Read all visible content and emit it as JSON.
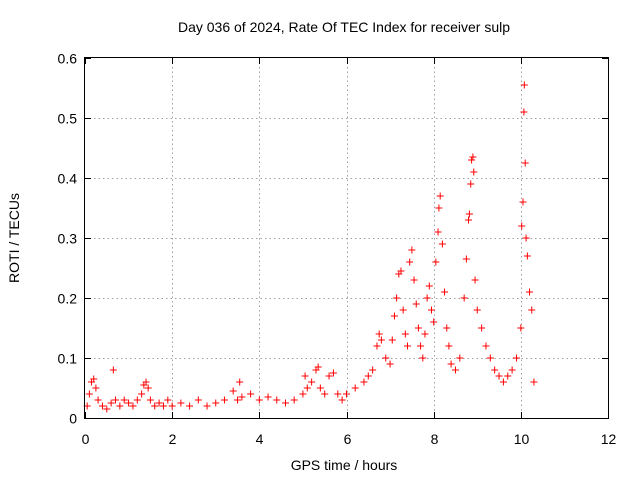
{
  "chart_data": {
    "type": "scatter",
    "title": "Day 036 of 2024, Rate Of TEC Index for receiver sulp",
    "xlabel": "GPS time / hours",
    "ylabel": "ROTI / TECUs",
    "xlim": [
      0,
      12
    ],
    "ylim": [
      0,
      0.6
    ],
    "xticks": [
      0,
      2,
      4,
      6,
      8,
      10,
      12
    ],
    "yticks": [
      0,
      0.1,
      0.2,
      0.3,
      0.4,
      0.5,
      0.6
    ],
    "xtick_labels": [
      "0",
      "2",
      "4",
      "6",
      "8",
      "10",
      "12"
    ],
    "ytick_labels": [
      "0",
      "0.1",
      "0.2",
      "0.3",
      "0.4",
      "0.5",
      "0.6"
    ],
    "grid": true,
    "marker": "+",
    "color": "#ff0000",
    "series": [
      {
        "name": "ROTI",
        "points": [
          [
            0.05,
            0.02
          ],
          [
            0.1,
            0.04
          ],
          [
            0.15,
            0.06
          ],
          [
            0.2,
            0.065
          ],
          [
            0.25,
            0.05
          ],
          [
            0.3,
            0.03
          ],
          [
            0.4,
            0.02
          ],
          [
            0.5,
            0.015
          ],
          [
            0.6,
            0.025
          ],
          [
            0.65,
            0.08
          ],
          [
            0.7,
            0.03
          ],
          [
            0.8,
            0.02
          ],
          [
            0.9,
            0.03
          ],
          [
            1.0,
            0.025
          ],
          [
            1.1,
            0.02
          ],
          [
            1.2,
            0.03
          ],
          [
            1.3,
            0.04
          ],
          [
            1.35,
            0.055
          ],
          [
            1.4,
            0.06
          ],
          [
            1.45,
            0.05
          ],
          [
            1.5,
            0.03
          ],
          [
            1.6,
            0.02
          ],
          [
            1.7,
            0.025
          ],
          [
            1.8,
            0.02
          ],
          [
            1.9,
            0.03
          ],
          [
            2.0,
            0.02
          ],
          [
            2.2,
            0.025
          ],
          [
            2.4,
            0.02
          ],
          [
            2.6,
            0.03
          ],
          [
            2.8,
            0.02
          ],
          [
            3.0,
            0.025
          ],
          [
            3.2,
            0.03
          ],
          [
            3.4,
            0.045
          ],
          [
            3.5,
            0.03
          ],
          [
            3.55,
            0.06
          ],
          [
            3.6,
            0.035
          ],
          [
            3.8,
            0.04
          ],
          [
            4.0,
            0.03
          ],
          [
            4.2,
            0.035
          ],
          [
            4.4,
            0.03
          ],
          [
            4.6,
            0.025
          ],
          [
            4.8,
            0.03
          ],
          [
            5.0,
            0.04
          ],
          [
            5.05,
            0.07
          ],
          [
            5.1,
            0.05
          ],
          [
            5.2,
            0.06
          ],
          [
            5.3,
            0.08
          ],
          [
            5.35,
            0.085
          ],
          [
            5.4,
            0.05
          ],
          [
            5.5,
            0.04
          ],
          [
            5.6,
            0.07
          ],
          [
            5.7,
            0.075
          ],
          [
            5.8,
            0.04
          ],
          [
            5.9,
            0.03
          ],
          [
            6.0,
            0.04
          ],
          [
            6.2,
            0.05
          ],
          [
            6.4,
            0.06
          ],
          [
            6.5,
            0.07
          ],
          [
            6.6,
            0.08
          ],
          [
            6.7,
            0.12
          ],
          [
            6.75,
            0.14
          ],
          [
            6.8,
            0.13
          ],
          [
            6.9,
            0.1
          ],
          [
            7.0,
            0.09
          ],
          [
            7.05,
            0.13
          ],
          [
            7.1,
            0.17
          ],
          [
            7.15,
            0.2
          ],
          [
            7.2,
            0.24
          ],
          [
            7.25,
            0.245
          ],
          [
            7.3,
            0.18
          ],
          [
            7.35,
            0.14
          ],
          [
            7.4,
            0.12
          ],
          [
            7.45,
            0.26
          ],
          [
            7.5,
            0.28
          ],
          [
            7.55,
            0.23
          ],
          [
            7.6,
            0.19
          ],
          [
            7.65,
            0.15
          ],
          [
            7.7,
            0.12
          ],
          [
            7.75,
            0.1
          ],
          [
            7.8,
            0.14
          ],
          [
            7.85,
            0.2
          ],
          [
            7.9,
            0.22
          ],
          [
            7.95,
            0.18
          ],
          [
            8.0,
            0.16
          ],
          [
            8.05,
            0.26
          ],
          [
            8.1,
            0.31
          ],
          [
            8.12,
            0.35
          ],
          [
            8.15,
            0.37
          ],
          [
            8.2,
            0.29
          ],
          [
            8.25,
            0.21
          ],
          [
            8.3,
            0.15
          ],
          [
            8.35,
            0.12
          ],
          [
            8.4,
            0.09
          ],
          [
            8.5,
            0.08
          ],
          [
            8.6,
            0.1
          ],
          [
            8.7,
            0.2
          ],
          [
            8.75,
            0.265
          ],
          [
            8.8,
            0.33
          ],
          [
            8.82,
            0.34
          ],
          [
            8.85,
            0.39
          ],
          [
            8.87,
            0.43
          ],
          [
            8.9,
            0.435
          ],
          [
            8.92,
            0.41
          ],
          [
            8.95,
            0.23
          ],
          [
            9.0,
            0.18
          ],
          [
            9.1,
            0.15
          ],
          [
            9.2,
            0.12
          ],
          [
            9.3,
            0.1
          ],
          [
            9.4,
            0.08
          ],
          [
            9.5,
            0.07
          ],
          [
            9.6,
            0.06
          ],
          [
            9.7,
            0.07
          ],
          [
            9.8,
            0.08
          ],
          [
            9.9,
            0.1
          ],
          [
            10.0,
            0.15
          ],
          [
            10.02,
            0.32
          ],
          [
            10.05,
            0.36
          ],
          [
            10.07,
            0.51
          ],
          [
            10.08,
            0.555
          ],
          [
            10.1,
            0.425
          ],
          [
            10.12,
            0.3
          ],
          [
            10.15,
            0.27
          ],
          [
            10.2,
            0.21
          ],
          [
            10.25,
            0.18
          ],
          [
            10.3,
            0.06
          ]
        ]
      }
    ]
  }
}
